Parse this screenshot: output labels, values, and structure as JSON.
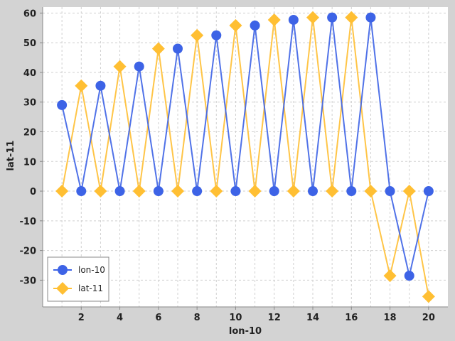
{
  "chart_data": {
    "type": "line",
    "title": "",
    "xlabel": "lon-10",
    "ylabel": "lat-11",
    "xlim": [
      0,
      21
    ],
    "ylim": [
      -39,
      62
    ],
    "x_ticks": [
      2,
      4,
      6,
      8,
      10,
      12,
      14,
      16,
      18,
      20
    ],
    "y_ticks": [
      -30,
      -20,
      -10,
      0,
      10,
      20,
      30,
      40,
      50,
      60
    ],
    "grid": true,
    "legend_position": "bottom-left",
    "x": [
      1,
      2,
      3,
      4,
      5,
      6,
      7,
      8,
      9,
      10,
      11,
      12,
      13,
      14,
      15,
      16,
      17,
      18,
      19,
      20
    ],
    "series": [
      {
        "name": "lon-10",
        "marker": "circle",
        "color": "#3d63e6",
        "values": [
          29,
          0,
          35.5,
          0,
          42,
          0,
          48,
          0,
          52.5,
          0,
          55.8,
          0,
          57.7,
          0,
          58.5,
          0,
          58.5,
          0,
          -28.5,
          0
        ]
      },
      {
        "name": "lat-11",
        "marker": "diamond",
        "color": "#ffbf33",
        "values": [
          0,
          35.5,
          0,
          42,
          0,
          48,
          0,
          52.5,
          0,
          55.8,
          0,
          57.7,
          0,
          58.5,
          0,
          58.5,
          0,
          -28.5,
          0,
          -35.5
        ]
      }
    ]
  }
}
